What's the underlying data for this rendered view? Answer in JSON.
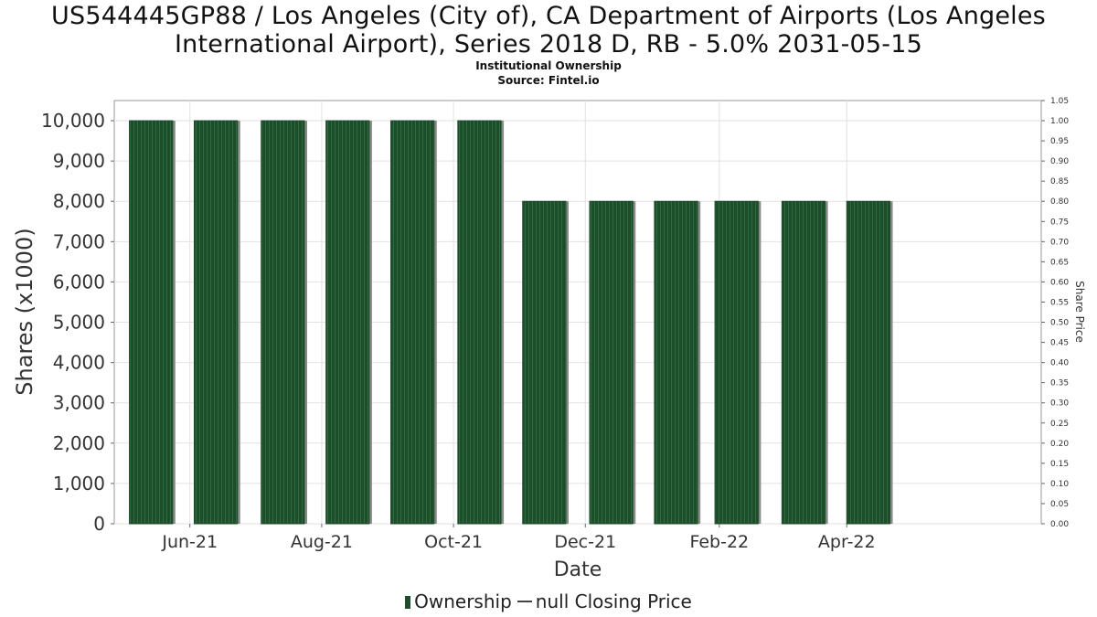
{
  "title_line1": "US544445GP88 / Los Angeles (City of), CA Department of Airports (Los Angeles",
  "title_line2": "International Airport), Series 2018 D, RB - 5.0% 2031-05-15",
  "subtitle_line1": "Institutional Ownership",
  "subtitle_line2": "Source: Fintel.io",
  "legend": {
    "ownership": "Ownership",
    "price": "null Closing Price"
  },
  "colors": {
    "bar": "#1e4d2b",
    "bar_stripe": "#2e6b3e",
    "bar_shadow": "#8a8a8a",
    "grid": "#e2e2e2",
    "axis": "#666666"
  },
  "chart_data": {
    "type": "bar",
    "title": "US544445GP88 / Los Angeles (City of), CA Department of Airports (Los Angeles International Airport), Series 2018 D, RB - 5.0% 2031-05-15",
    "xlabel": "Date",
    "ylabel": "Shares (x1000)",
    "y2label": "Share Price",
    "ylim": [
      0,
      10500
    ],
    "y2lim": [
      0,
      1.05
    ],
    "yticks": [
      0,
      1000,
      2000,
      3000,
      4000,
      5000,
      6000,
      7000,
      8000,
      9000,
      10000
    ],
    "ytick_labels": [
      "0",
      "1,000",
      "2,000",
      "3,000",
      "4,000",
      "5,000",
      "6,000",
      "7,000",
      "8,000",
      "9,000",
      "10,000"
    ],
    "y2ticks": [
      "0.00",
      "0.05",
      "0.10",
      "0.15",
      "0.20",
      "0.25",
      "0.30",
      "0.35",
      "0.40",
      "0.45",
      "0.50",
      "0.55",
      "0.60",
      "0.65",
      "0.70",
      "0.75",
      "0.80",
      "0.85",
      "0.90",
      "0.95",
      "1.00",
      "1.05"
    ],
    "x_tick_labels": [
      "Jun-21",
      "Aug-21",
      "Oct-21",
      "Dec-21",
      "Feb-22",
      "Apr-22"
    ],
    "x_tick_dates": [
      "2021-06-01",
      "2021-08-01",
      "2021-10-01",
      "2021-12-01",
      "2022-02-01",
      "2022-04-01"
    ],
    "xlim": [
      "2021-04-27",
      "2022-06-30"
    ],
    "grid": true,
    "legend_position": "bottom",
    "series": [
      {
        "name": "Ownership",
        "x": [
          "2021-05-14",
          "2021-06-13",
          "2021-07-14",
          "2021-08-13",
          "2021-09-12",
          "2021-10-13",
          "2021-11-12",
          "2021-12-13",
          "2022-01-12",
          "2022-02-09",
          "2022-03-12",
          "2022-04-11"
        ],
        "values": [
          10000,
          10000,
          10000,
          10000,
          10000,
          10000,
          8000,
          8000,
          8000,
          8000,
          8000,
          8000
        ],
        "bar_width_days": 20
      },
      {
        "name": "null Closing Price",
        "values": []
      }
    ]
  }
}
